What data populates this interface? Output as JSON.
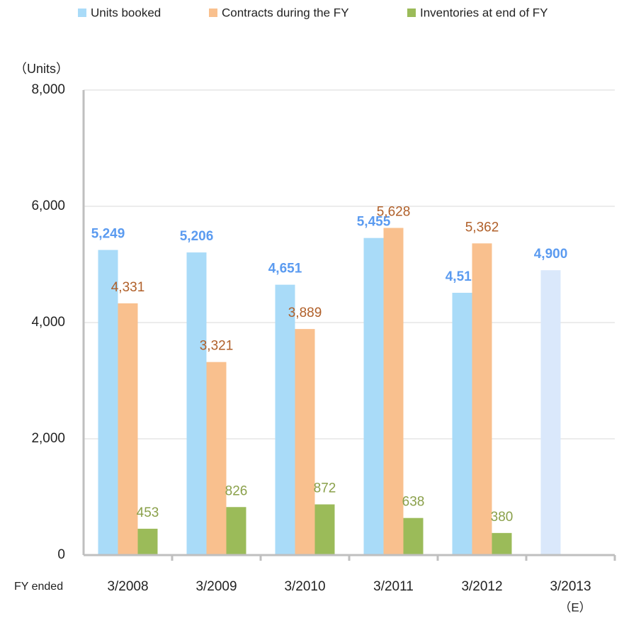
{
  "chart_data": {
    "type": "bar",
    "y_axis_label": "（Units）",
    "x_axis_label": "FY ended",
    "annotation": "（E）",
    "categories": [
      "3/2008",
      "3/2009",
      "3/2010",
      "3/2011",
      "3/2012",
      "3/2013"
    ],
    "series": [
      {
        "name": "Units booked",
        "color": "#a9dbf8",
        "colors": [
          "#a9dbf8",
          "#a9dbf8",
          "#a9dbf8",
          "#a9dbf8",
          "#a9dbf8",
          "#dae8fb"
        ],
        "label_color": "#5b9bf0",
        "values": [
          5249,
          5206,
          4651,
          5455,
          4512,
          4900
        ],
        "value_labels": [
          "5,249",
          "5,206",
          "4,651",
          "5,455",
          "4,512",
          "4,900"
        ]
      },
      {
        "name": "Contracts during the FY",
        "color": "#f9c08e",
        "label_color": "#b0602a",
        "values": [
          4331,
          3321,
          3889,
          5628,
          5362,
          null
        ],
        "value_labels": [
          "4,331",
          "3,321",
          "3,889",
          "5,628",
          "5,362",
          null
        ]
      },
      {
        "name": "Inventories at end of FY",
        "color": "#9bbb59",
        "label_color": "#8aa04a",
        "values": [
          453,
          826,
          872,
          638,
          380,
          null
        ],
        "value_labels": [
          "453",
          "826",
          "872",
          "638",
          "380",
          null
        ]
      }
    ],
    "ylim": [
      0,
      8000
    ],
    "yticks": [
      {
        "value": 0,
        "label": "0"
      },
      {
        "value": 2000,
        "label": "2,000"
      },
      {
        "value": 4000,
        "label": "4,000"
      },
      {
        "value": 6000,
        "label": "6,000"
      },
      {
        "value": 8000,
        "label": "8,000"
      }
    ],
    "grid": true,
    "legend": "top"
  }
}
